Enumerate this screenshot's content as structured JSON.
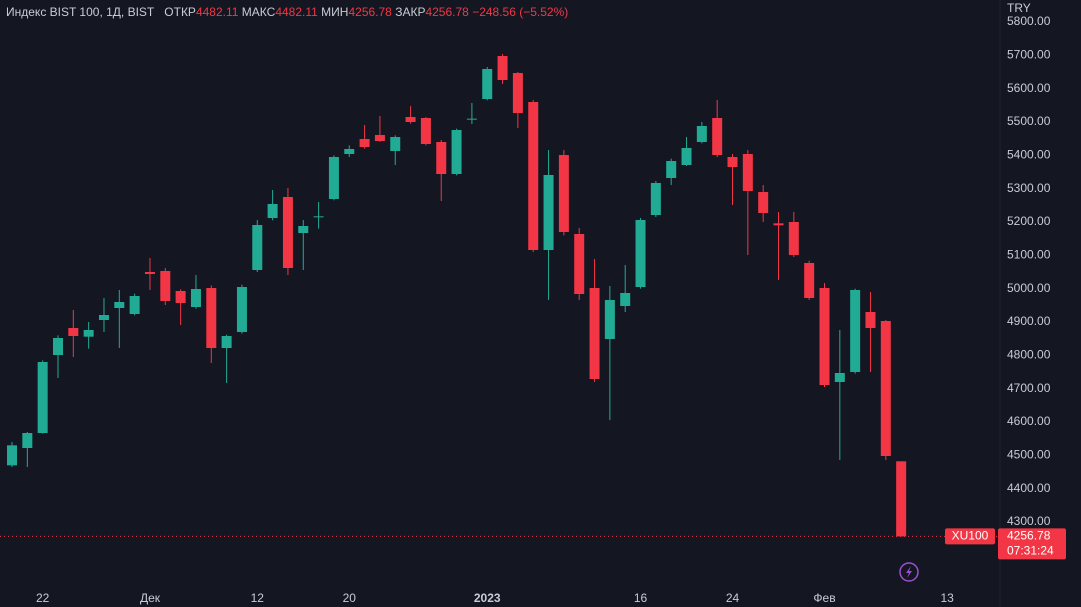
{
  "header": {
    "title": "Индекс BIST 100, 1Д, BIST",
    "open_label": "ОТКР",
    "open": 4482.11,
    "high_label": "МАКС",
    "high": 4482.11,
    "low_label": "МИН",
    "low": 4256.78,
    "close_label": "ЗАКР",
    "close": 4256.78,
    "change": "−248.56 (−5.52%)"
  },
  "chart_data": {
    "type": "candlestick",
    "categories": [
      null,
      null,
      "22",
      null,
      null,
      null,
      null,
      null,
      null,
      "Дек",
      null,
      null,
      null,
      null,
      null,
      null,
      "12",
      null,
      null,
      null,
      null,
      null,
      "20",
      null,
      null,
      null,
      null,
      null,
      null,
      null,
      null,
      "2023",
      null,
      null,
      null,
      null,
      null,
      null,
      null,
      null,
      null,
      "16",
      null,
      null,
      null,
      null,
      null,
      "24",
      null,
      null,
      null,
      null,
      null,
      "Фев",
      null,
      null,
      null,
      null,
      null,
      null,
      null,
      "13"
    ],
    "open": [
      4470,
      4522,
      4567,
      4801,
      4882,
      4856,
      4906,
      4942,
      4924,
      5050,
      5053,
      4993,
      4945,
      5002,
      4822,
      4870,
      5056,
      5212,
      5275,
      5167,
      5215,
      5269,
      5404,
      5449,
      5461,
      5413,
      5515,
      5512,
      5440,
      5344,
      5509,
      5569,
      5698,
      5647,
      5560,
      5116,
      5401,
      5164,
      5002,
      4849,
      4948,
      5005,
      5221,
      5332,
      5371,
      5440,
      5512,
      5395,
      5404,
      5290,
      5196,
      5200,
      5077,
      5002,
      4720,
      4750,
      4930,
      4903,
      4482.11,
      null,
      null,
      null
    ],
    "high": [
      4540,
      4570,
      4785,
      4860,
      4936,
      4900,
      4972,
      4996,
      4985,
      5092,
      5062,
      4998,
      5041,
      5010,
      4862,
      5012,
      5206,
      5296,
      5302,
      5206,
      5260,
      5400,
      5430,
      5491,
      5518,
      5460,
      5548,
      5515,
      5446,
      5480,
      5557,
      5665,
      5704,
      5650,
      5566,
      5416,
      5416,
      5182,
      5089,
      5008,
      5071,
      5212,
      5323,
      5390,
      5455,
      5500,
      5566,
      5404,
      5416,
      5311,
      5230,
      5230,
      5084,
      5017,
      4876,
      5000,
      4990,
      4906,
      4482.11,
      null,
      null,
      null
    ],
    "low": [
      4465,
      4465,
      4565,
      4732,
      4795,
      4820,
      4870,
      4822,
      4920,
      4996,
      4951,
      4891,
      4940,
      4777,
      4717,
      4865,
      5050,
      5205,
      5041,
      5056,
      5180,
      5265,
      5395,
      5420,
      5440,
      5371,
      5495,
      5430,
      5263,
      5340,
      5494,
      5565,
      5614,
      5482,
      5110,
      4966,
      5160,
      4966,
      4720,
      4606,
      4930,
      5000,
      5215,
      5311,
      5368,
      5436,
      5395,
      5251,
      5101,
      5200,
      5026,
      5095,
      4966,
      4705,
      4486,
      4745,
      4750,
      4486,
      4256.78,
      null,
      null,
      null
    ],
    "close": [
      4530,
      4567,
      4780,
      4852,
      4858,
      4876,
      4921,
      4960,
      4978,
      5044,
      4963,
      4957,
      4999,
      4822,
      4858,
      5005,
      5191,
      5254,
      5062,
      5188,
      5217,
      5395,
      5419,
      5425,
      5443,
      5455,
      5500,
      5434,
      5344,
      5476,
      5510,
      5659,
      5626,
      5527,
      5116,
      5341,
      5170,
      4984,
      4729,
      4966,
      4987,
      5206,
      5317,
      5383,
      5422,
      5488,
      5401,
      5365,
      5293,
      5227,
      5190,
      5101,
      4972,
      4711,
      4747,
      4996,
      4882,
      4498,
      4256.78,
      null,
      null,
      null
    ],
    "up_color": "#22ab94",
    "down_color": "#f23645",
    "y_unit": "TRY",
    "ylim": [
      4126,
      5866
    ],
    "yticks": [
      {
        "value": 4300,
        "label": "4300.00"
      },
      {
        "value": 4400,
        "label": "4400.00"
      },
      {
        "value": 4500,
        "label": "4500.00"
      },
      {
        "value": 4600,
        "label": "4600.00"
      },
      {
        "value": 4700,
        "label": "4700.00"
      },
      {
        "value": 4800,
        "label": "4800.00"
      },
      {
        "value": 4900,
        "label": "4900.00"
      },
      {
        "value": 5000,
        "label": "5000.00"
      },
      {
        "value": 5100,
        "label": "5100.00"
      },
      {
        "value": 5200,
        "label": "5200.00"
      },
      {
        "value": 5300,
        "label": "5300.00"
      },
      {
        "value": 5400,
        "label": "5400.00"
      },
      {
        "value": 5500,
        "label": "5500.00"
      },
      {
        "value": 5600,
        "label": "5600.00"
      },
      {
        "value": 5700,
        "label": "5700.00"
      },
      {
        "value": 5800,
        "label": "5800.00"
      }
    ],
    "symbol": "XU100",
    "last_price": 4256.78,
    "countdown": "07:31:24",
    "bold_label": "2023"
  }
}
